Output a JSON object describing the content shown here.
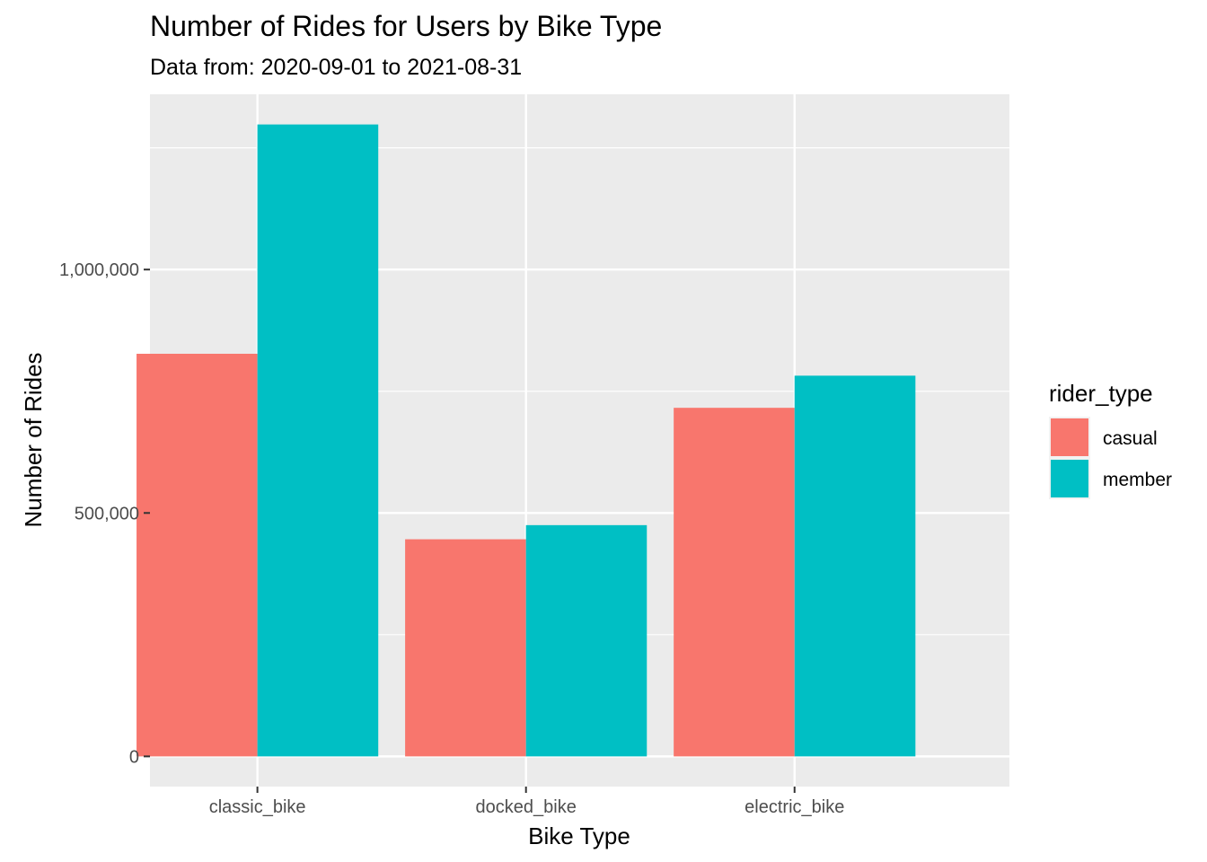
{
  "chart_data": {
    "type": "bar",
    "title": "Number of Rides for Users by Bike Type",
    "subtitle": "Data from: 2020-09-01 to 2021-08-31",
    "xlabel": "Bike Type",
    "ylabel": "Number of Rides",
    "categories": [
      "classic_bike",
      "docked_bike",
      "electric_bike"
    ],
    "series": [
      {
        "name": "casual",
        "color": "#F8766D",
        "values": [
          827000,
          446000,
          716000
        ]
      },
      {
        "name": "member",
        "color": "#00BFC4",
        "values": [
          1298000,
          475000,
          782000
        ]
      }
    ],
    "ylim": [
      -62000,
      1360000
    ],
    "yticks": [
      0,
      500000,
      1000000
    ],
    "ytick_labels": [
      "0",
      "500,000",
      "1,000,000"
    ],
    "yminor": [
      250000,
      750000,
      1250000
    ],
    "legend": {
      "title": "rider_type",
      "position": "right"
    },
    "grid": true,
    "panel_bg": "#EBEBEB"
  }
}
